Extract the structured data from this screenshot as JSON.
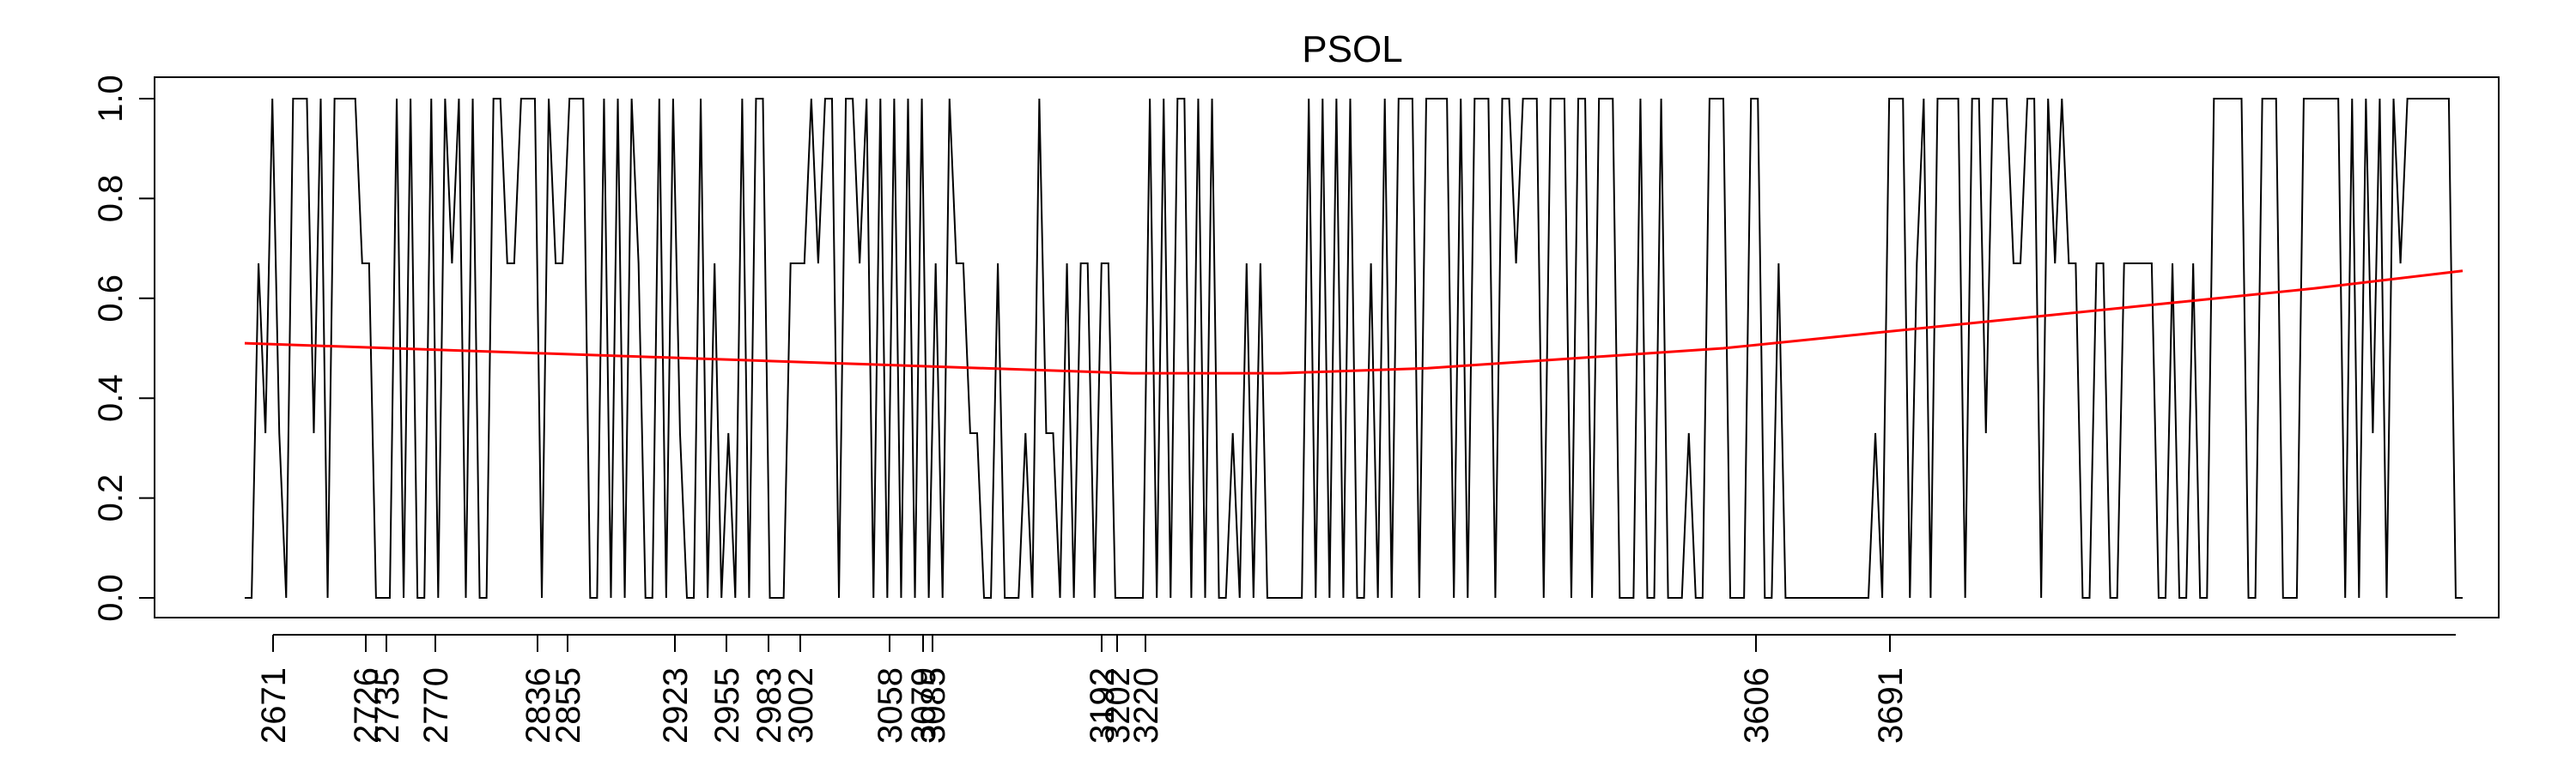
{
  "chart_data": {
    "type": "line",
    "title": "PSOL",
    "xlabel": "",
    "ylabel": "",
    "ylim": [
      0,
      1
    ],
    "y_ticks": [
      "0.0",
      "0.2",
      "0.4",
      "0.6",
      "0.8",
      "1.0"
    ],
    "y_tick_values": [
      0,
      0.2,
      0.4,
      0.6,
      0.8,
      1.0
    ],
    "x_tick_labels": [
      "2671",
      "2726",
      "2735",
      "2770",
      "2836",
      "2855",
      "2923",
      "2955",
      "2983",
      "3002",
      "3058",
      "3079",
      "3085",
      "3192",
      "3202",
      "3220",
      "3606",
      "3691"
    ],
    "series": [
      {
        "name": "",
        "color": "#000000",
        "values": [
          0,
          0,
          0.67,
          0.33,
          1,
          0.33,
          0,
          1,
          1,
          1,
          0.33,
          1,
          0,
          1,
          1,
          1,
          1,
          0.67,
          0.67,
          0,
          0,
          0,
          1,
          0,
          1,
          0,
          0,
          1,
          0,
          1,
          0.67,
          1,
          0,
          1,
          0,
          0,
          1,
          1,
          0.67,
          0.67,
          1,
          1,
          1,
          0,
          1,
          0.67,
          0.67,
          1,
          1,
          1,
          0,
          0,
          1,
          0,
          1,
          0,
          1,
          0.67,
          0,
          0,
          1,
          0,
          1,
          0.33,
          0,
          0,
          1,
          0,
          0.67,
          0,
          0.33,
          0,
          1,
          0,
          1,
          1,
          0,
          0,
          0,
          0.67,
          0.67,
          0.67,
          1,
          0.67,
          1,
          1,
          0,
          1,
          1,
          0.67,
          1,
          0,
          1,
          0,
          1,
          0,
          1,
          0,
          1,
          0,
          0.67,
          0,
          1,
          0.67,
          0.67,
          0.33,
          0.33,
          0,
          0,
          0.67,
          0,
          0,
          0,
          0.33,
          0,
          1,
          0.33,
          0.33,
          0,
          0.67,
          0,
          0.67,
          0.67,
          0,
          0.67,
          0.67,
          0,
          0,
          0,
          0,
          0,
          1,
          0,
          1,
          0,
          1,
          1,
          0,
          1,
          0,
          1,
          0,
          0,
          0.33,
          0,
          0.67,
          0,
          0.67,
          0,
          0,
          0,
          0,
          0,
          0,
          1,
          0,
          1,
          0,
          1,
          0,
          1,
          0,
          0,
          0.67,
          0,
          1,
          0,
          1,
          1,
          1,
          0,
          1,
          1,
          1,
          1,
          0,
          1,
          0,
          1,
          1,
          1,
          0,
          1,
          1,
          0.67,
          1,
          1,
          1,
          0,
          1,
          1,
          1,
          0,
          1,
          1,
          0,
          1,
          1,
          1,
          0,
          0,
          0,
          1,
          0,
          0,
          1,
          0,
          0,
          0,
          0.33,
          0,
          0,
          1,
          1,
          1,
          0,
          0,
          0,
          1,
          1,
          0,
          0,
          0.67,
          0,
          0,
          0,
          0,
          0,
          0,
          0,
          0,
          0,
          0,
          0,
          0,
          0,
          0.33,
          0,
          1,
          1,
          1,
          0,
          0.67,
          1,
          0,
          1,
          1,
          1,
          1,
          0,
          1,
          1,
          0.33,
          1,
          1,
          1,
          0.67,
          0.67,
          1,
          1,
          0,
          1,
          0.67,
          1,
          0.67,
          0.67,
          0,
          0,
          0.67,
          0.67,
          0,
          0,
          0.67,
          0.67,
          0.67,
          0.67,
          0.67,
          0,
          0,
          0.67,
          0,
          0,
          0.67,
          0,
          0,
          1,
          1,
          1,
          1,
          1,
          0,
          0,
          1,
          1,
          1,
          0,
          0,
          0,
          1,
          1,
          1,
          1,
          1,
          1,
          0,
          1,
          0,
          1,
          0.33,
          1,
          0,
          1,
          0.67,
          1,
          1,
          1,
          1,
          1,
          1,
          1,
          0,
          0
        ]
      },
      {
        "name": "",
        "color": "#ff0000",
        "values": [
          0.51,
          0.5,
          0.49,
          0.48,
          0.47,
          0.46,
          0.45,
          0.45,
          0.46,
          0.48,
          0.5,
          0.53,
          0.56,
          0.59,
          0.62,
          0.655
        ]
      }
    ],
    "grid": false,
    "legend": "none"
  }
}
